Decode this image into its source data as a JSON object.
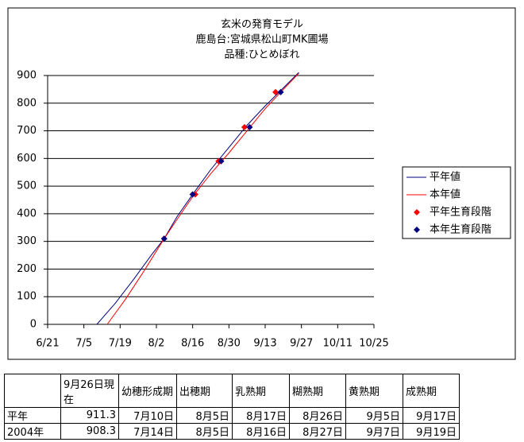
{
  "chart_data": {
    "type": "line",
    "title": [
      "玄米の発育モデル",
      "鹿島台:宮城県松山町MK圃場",
      "品種:ひとめぼれ"
    ],
    "xlim": [
      "6/21",
      "10/25"
    ],
    "xticks": [
      "6/21",
      "7/5",
      "7/19",
      "8/2",
      "8/16",
      "8/30",
      "9/13",
      "9/27",
      "10/11",
      "10/25"
    ],
    "ylim": [
      0,
      900
    ],
    "yticks": [
      0,
      100,
      200,
      300,
      400,
      500,
      600,
      700,
      800,
      900
    ],
    "grid": true,
    "legend": "right",
    "series": [
      {
        "name": "平年値",
        "color": "#000080",
        "mode": "line",
        "x": [
          "7/10",
          "7/17",
          "7/24",
          "7/31",
          "8/5",
          "8/10",
          "8/16",
          "8/23",
          "8/30",
          "9/6",
          "9/13",
          "9/20",
          "9/26"
        ],
        "values": [
          0,
          75,
          160,
          250,
          310,
          390,
          470,
          560,
          640,
          720,
          790,
          855,
          911.3
        ]
      },
      {
        "name": "本年値",
        "color": "#ff0000",
        "mode": "line",
        "x": [
          "7/14",
          "7/21",
          "7/28",
          "8/5",
          "8/10",
          "8/16",
          "8/23",
          "8/30",
          "9/6",
          "9/13",
          "9/19",
          "9/26"
        ],
        "values": [
          0,
          90,
          190,
          310,
          380,
          462,
          545,
          620,
          700,
          780,
          840,
          908.3
        ]
      },
      {
        "name": "平年生育段階",
        "color": "#ff0000",
        "mode": "markers",
        "x": [
          "8/5",
          "8/17",
          "8/26",
          "9/5",
          "9/17"
        ],
        "values": [
          310,
          470,
          590,
          713,
          840
        ]
      },
      {
        "name": "本年生育段階",
        "color": "#000080",
        "mode": "markers",
        "x": [
          "8/5",
          "8/16",
          "8/27",
          "9/7",
          "9/19"
        ],
        "values": [
          310,
          470,
          590,
          713,
          840
        ]
      }
    ]
  },
  "table": {
    "header": [
      "9月26日現在",
      "幼穂形成期",
      "出穂期",
      "乳熟期",
      "糊熟期",
      "黄熟期",
      "成熟期"
    ],
    "rows": [
      [
        "平年",
        "911.3",
        "7月10日",
        "8月5日",
        "8月17日",
        "8月26日",
        "9月5日",
        "9月17日"
      ],
      [
        "2004年",
        "908.3",
        "7月14日",
        "8月5日",
        "8月16日",
        "8月27日",
        "9月7日",
        "9月19日"
      ]
    ]
  }
}
